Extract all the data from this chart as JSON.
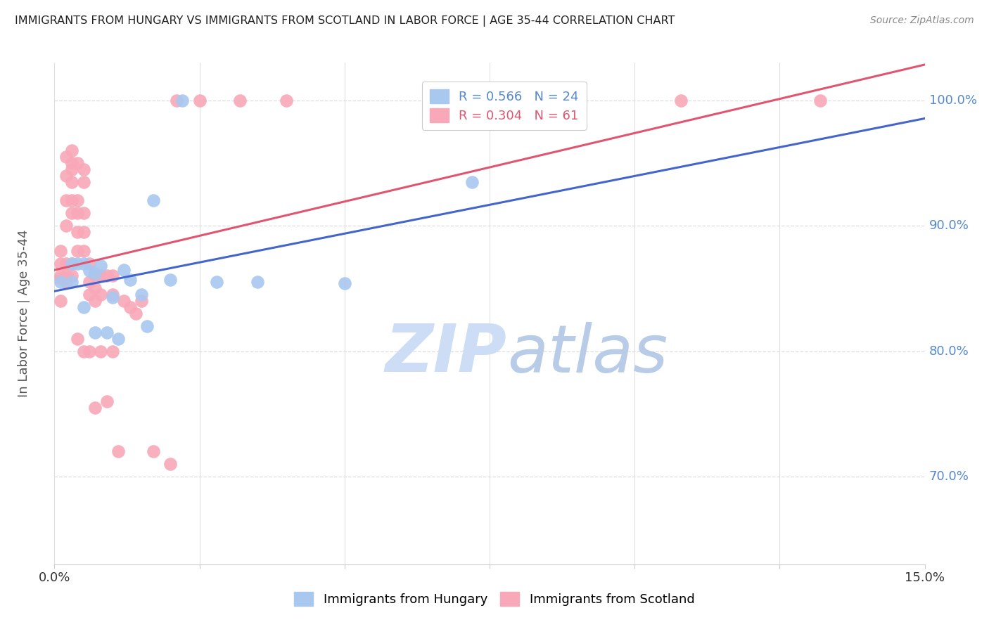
{
  "title": "IMMIGRANTS FROM HUNGARY VS IMMIGRANTS FROM SCOTLAND IN LABOR FORCE | AGE 35-44 CORRELATION CHART",
  "source": "Source: ZipAtlas.com",
  "ylabel": "In Labor Force | Age 35-44",
  "xlim": [
    0.0,
    0.15
  ],
  "ylim": [
    0.63,
    1.03
  ],
  "xticks": [
    0.0,
    0.025,
    0.05,
    0.075,
    0.1,
    0.125,
    0.15
  ],
  "yticks": [
    0.7,
    0.8,
    0.9,
    1.0
  ],
  "yticklabels": [
    "70.0%",
    "80.0%",
    "90.0%",
    "100.0%"
  ],
  "hungary_color": "#a8c8f0",
  "scotland_color": "#f8a8b8",
  "hungary_line_color": "#4466cc",
  "scotland_line_color": "#e05570",
  "hungary_R": 0.566,
  "hungary_N": 24,
  "scotland_R": 0.304,
  "scotland_N": 61,
  "watermark_zip": "ZIP",
  "watermark_atlas": "atlas",
  "watermark_color": "#ccddf5",
  "watermark_atlas_color": "#b8cce8",
  "legend_hungary": "Immigrants from Hungary",
  "legend_scotland": "Immigrants from Scotland",
  "hungary_x": [
    0.001,
    0.003,
    0.003,
    0.004,
    0.005,
    0.005,
    0.006,
    0.007,
    0.007,
    0.008,
    0.009,
    0.01,
    0.011,
    0.012,
    0.013,
    0.015,
    0.016,
    0.017,
    0.02,
    0.022,
    0.028,
    0.035,
    0.05,
    0.072
  ],
  "hungary_y": [
    0.855,
    0.87,
    0.855,
    0.87,
    0.87,
    0.835,
    0.864,
    0.862,
    0.815,
    0.868,
    0.815,
    0.843,
    0.81,
    0.865,
    0.857,
    0.845,
    0.82,
    0.92,
    0.857,
    1.0,
    0.855,
    0.855,
    0.854,
    0.935
  ],
  "scotland_x": [
    0.001,
    0.001,
    0.001,
    0.001,
    0.001,
    0.002,
    0.002,
    0.002,
    0.002,
    0.002,
    0.002,
    0.002,
    0.003,
    0.003,
    0.003,
    0.003,
    0.003,
    0.003,
    0.003,
    0.003,
    0.004,
    0.004,
    0.004,
    0.004,
    0.004,
    0.004,
    0.005,
    0.005,
    0.005,
    0.005,
    0.005,
    0.005,
    0.006,
    0.006,
    0.006,
    0.006,
    0.007,
    0.007,
    0.007,
    0.007,
    0.008,
    0.008,
    0.008,
    0.009,
    0.009,
    0.01,
    0.01,
    0.01,
    0.011,
    0.012,
    0.013,
    0.014,
    0.015,
    0.017,
    0.02,
    0.021,
    0.025,
    0.032,
    0.04,
    0.108,
    0.132
  ],
  "scotland_y": [
    0.858,
    0.87,
    0.88,
    0.86,
    0.84,
    0.955,
    0.94,
    0.92,
    0.9,
    0.87,
    0.86,
    0.855,
    0.96,
    0.95,
    0.945,
    0.935,
    0.92,
    0.91,
    0.87,
    0.86,
    0.95,
    0.92,
    0.91,
    0.895,
    0.88,
    0.81,
    0.945,
    0.935,
    0.91,
    0.895,
    0.88,
    0.8,
    0.87,
    0.855,
    0.845,
    0.8,
    0.86,
    0.85,
    0.84,
    0.755,
    0.86,
    0.845,
    0.8,
    0.86,
    0.76,
    0.86,
    0.845,
    0.8,
    0.72,
    0.84,
    0.835,
    0.83,
    0.84,
    0.72,
    0.71,
    1.0,
    1.0,
    1.0,
    1.0,
    1.0,
    1.0
  ],
  "bg_color": "#ffffff",
  "grid_color": "#dddddd",
  "axis_color": "#cccccc",
  "title_color": "#222222",
  "right_axis_color": "#5588cc",
  "legend_box_color": "#5588cc",
  "legend_box_scotland_color": "#e05570"
}
